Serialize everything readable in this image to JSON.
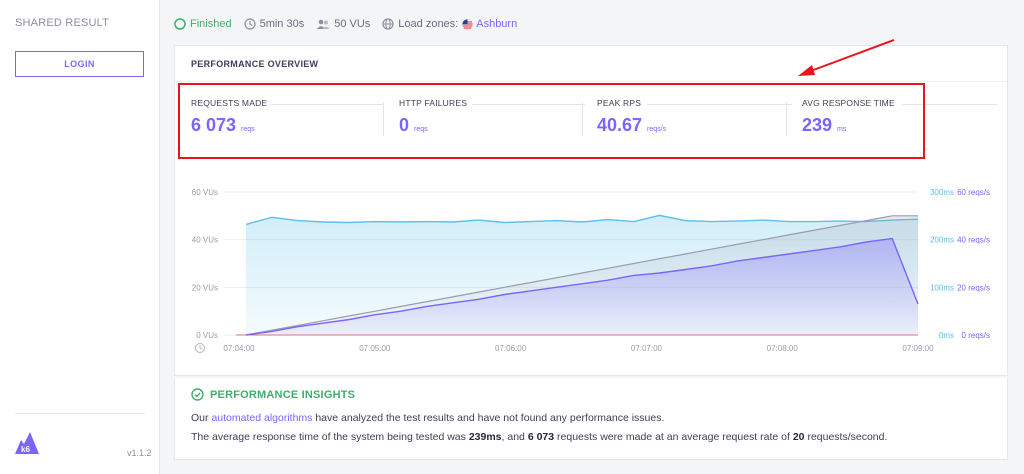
{
  "sidebar": {
    "shared_result": "SHARED RESULT",
    "login_label": "LOGIN",
    "version": "v1.1.2"
  },
  "status": {
    "state": "Finished",
    "duration": "5min 30s",
    "vus": "50 VUs",
    "load_zones_label": "Load zones:",
    "zone": "Ashburn"
  },
  "overview": {
    "title": "PERFORMANCE OVERVIEW",
    "metrics": [
      {
        "label": "REQUESTS MADE",
        "value": "6 073",
        "unit": "reqs"
      },
      {
        "label": "HTTP FAILURES",
        "value": "0",
        "unit": "reqs"
      },
      {
        "label": "PEAK RPS",
        "value": "40.67",
        "unit": "reqs/s"
      },
      {
        "label": "AVG RESPONSE TIME",
        "value": "239",
        "unit": "ms"
      }
    ]
  },
  "chart_data": {
    "type": "line",
    "x_labels": [
      "07:04:00",
      "07:05:00",
      "07:06:00",
      "07:07:00",
      "07:08:00",
      "07:09:00"
    ],
    "left_axis": [
      "0 VUs",
      "20 VUs",
      "40 VUs",
      "60 VUs"
    ],
    "right_axis_ms": [
      "0ms",
      "100ms",
      "200ms",
      "300ms"
    ],
    "right_axis_rps": [
      "0 reqs/s",
      "20 reqs/s",
      "40 reqs/s",
      "60 reqs/s"
    ],
    "ylim_vus": [
      0,
      60
    ],
    "ylim_ms": [
      0,
      300
    ],
    "ylim_rps": [
      0,
      60
    ],
    "series": [
      {
        "unit": "VUs",
        "color": "#9b9cab",
        "values": [
          0,
          2,
          4,
          6,
          8,
          10,
          12,
          14,
          16,
          18,
          20,
          22,
          24,
          26,
          28,
          30,
          32,
          34,
          36,
          38,
          40,
          42,
          44,
          46,
          48,
          50,
          50
        ]
      },
      {
        "unit": "ms",
        "color": "#5bc0eb",
        "values": [
          232,
          247,
          240,
          237,
          236,
          238,
          237,
          238,
          237,
          241,
          236,
          238,
          240,
          237,
          242,
          238,
          251,
          240,
          238,
          239,
          241,
          238,
          238,
          239,
          238,
          241,
          243
        ]
      },
      {
        "unit": "reqs/s",
        "color": "#7d64ff",
        "values": [
          0,
          1.5,
          3.5,
          5,
          6.5,
          8.5,
          10,
          12,
          13.5,
          15,
          17,
          18.5,
          20,
          21.5,
          23,
          25,
          26,
          27.5,
          29,
          31,
          32.5,
          34,
          35.5,
          37,
          39,
          40.5,
          13
        ]
      }
    ]
  },
  "insights": {
    "title": "PERFORMANCE INSIGHTS",
    "line1_a": "Our",
    "line1_link": "automated algorithms",
    "line1_b": "have analyzed the test results and have not found any performance issues.",
    "line2_a": "The average response time of the system being tested was",
    "line2_ms": "239ms",
    "line2_b": ", and",
    "line2_reqs": "6 073",
    "line2_c": "requests were made at an average request rate of",
    "line2_rate": "20",
    "line2_d": "requests/second."
  },
  "colors": {
    "accent": "#7d64ff",
    "success": "#3fae6b",
    "highlight": "#e8151b"
  }
}
